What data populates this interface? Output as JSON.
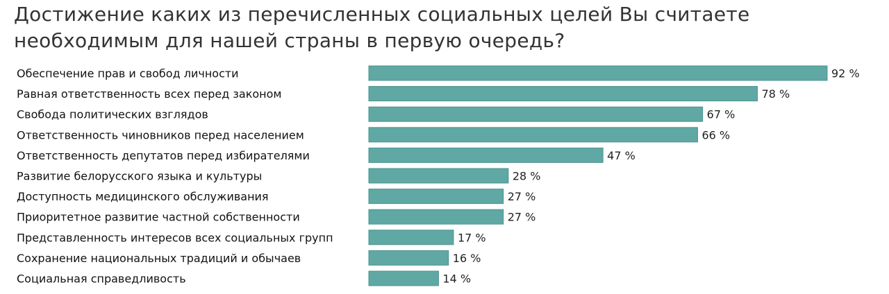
{
  "chart_data": {
    "type": "bar",
    "orientation": "horizontal",
    "title": "Достижение каких из перечисленных социальных целей Вы считаете необходимым для нашей страны в первую очередь?",
    "categories": [
      "Обеспечение прав и свобод личности",
      "Равная ответственность всех перед законом",
      "Свобода политических взглядов",
      "Ответственность чиновников перед населением",
      "Ответственность депутатов перед избирателями",
      "Развитие белорусского языка и культуры",
      "Доступность медицинского обслуживания",
      "Приоритетное развитие частной собственности",
      "Представленность интересов всех социальных групп",
      "Сохранение национальных традиций и обычаев",
      "Социальная справедливость"
    ],
    "values": [
      92,
      78,
      67,
      66,
      47,
      28,
      27,
      27,
      17,
      16,
      14
    ],
    "value_labels": [
      "92 %",
      "78 %",
      "67 %",
      "66 %",
      "47 %",
      "28 %",
      "27 %",
      "27 %",
      "17 %",
      "16 %",
      "14 %"
    ],
    "xlim": [
      0,
      100
    ],
    "grid": false,
    "legend": "none",
    "colors": {
      "bar": "#5fa8a4",
      "bar_stroke": "#4e9490"
    }
  }
}
